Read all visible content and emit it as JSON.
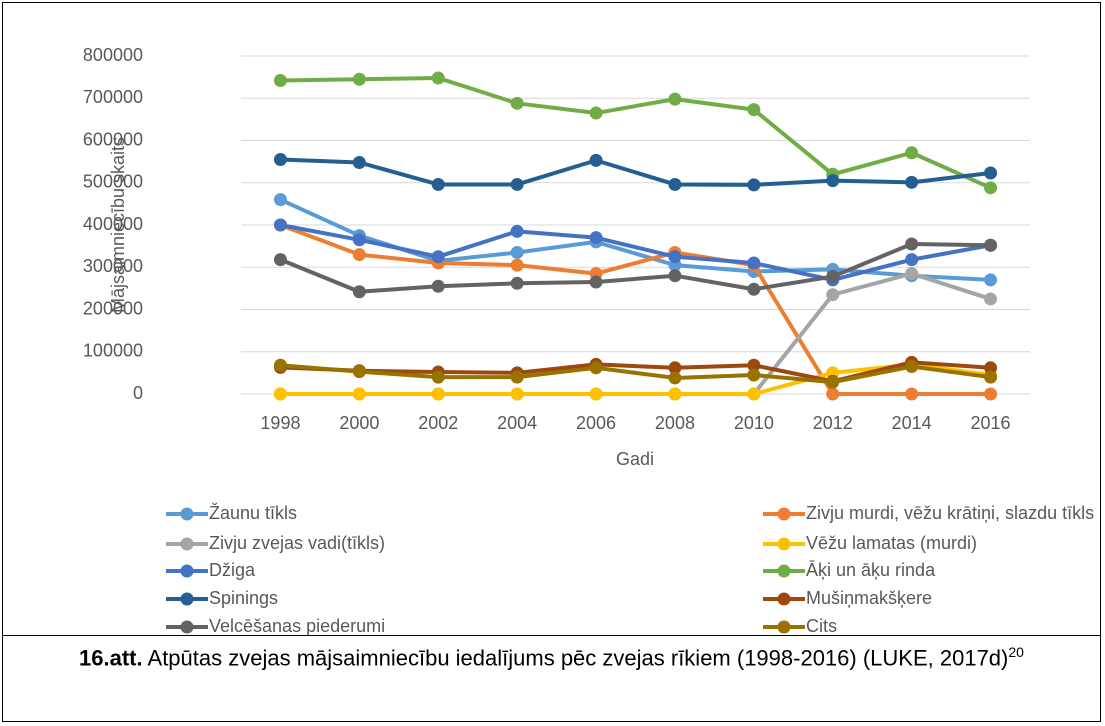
{
  "chart_data": {
    "type": "line",
    "x_label": "Gadi",
    "y_label": "Mājsaimniecību skaits",
    "categories": [
      "1998",
      "2000",
      "2002",
      "2004",
      "2006",
      "2008",
      "2010",
      "2012",
      "2014",
      "2016"
    ],
    "ylim": [
      0,
      800000
    ],
    "yticks": [
      0,
      100000,
      200000,
      300000,
      400000,
      500000,
      600000,
      700000,
      800000
    ],
    "grid": true,
    "series": [
      {
        "name": "Žaunu tīkls",
        "color": "#5B9BD5",
        "values": [
          460000,
          375000,
          315000,
          335000,
          360000,
          305000,
          290000,
          295000,
          280000,
          270000
        ]
      },
      {
        "name": "Zivju murdi, vēžu krātiņi, slazdu tīkls",
        "color": "#ED7D31",
        "values": [
          400000,
          330000,
          310000,
          305000,
          285000,
          335000,
          305000,
          0,
          0,
          0
        ]
      },
      {
        "name": "Zivju zvejas vadi(tīkls)",
        "color": "#A5A5A5",
        "values": [
          0,
          0,
          0,
          0,
          0,
          0,
          0,
          235000,
          285000,
          225000
        ]
      },
      {
        "name": "Vēžu lamatas (murdi)",
        "color": "#FFC000",
        "values": [
          0,
          0,
          0,
          0,
          0,
          0,
          0,
          50000,
          70000,
          45000
        ]
      },
      {
        "name": "Džiga",
        "color": "#4472C4",
        "values": [
          400000,
          365000,
          325000,
          385000,
          370000,
          325000,
          310000,
          270000,
          318000,
          352000
        ]
      },
      {
        "name": "Āķi un āķu rinda",
        "color": "#70AD47",
        "values": [
          742000,
          745000,
          748000,
          688000,
          665000,
          698000,
          673000,
          520000,
          571000,
          488000
        ]
      },
      {
        "name": "Spinings",
        "color": "#255E91",
        "values": [
          555000,
          548000,
          496000,
          496000,
          553000,
          496000,
          495000,
          505000,
          501000,
          523000
        ]
      },
      {
        "name": "Mušiņmakšķere",
        "color": "#9E480E",
        "values": [
          63000,
          55000,
          52000,
          50000,
          70000,
          62000,
          68000,
          30000,
          75000,
          62000
        ]
      },
      {
        "name": "Velcēšanas piederumi",
        "color": "#636363",
        "values": [
          318000,
          242000,
          255000,
          262000,
          265000,
          280000,
          248000,
          278000,
          355000,
          352000
        ]
      },
      {
        "name": "Cits",
        "color": "#997300",
        "values": [
          68000,
          53000,
          40000,
          40000,
          62000,
          38000,
          45000,
          28000,
          65000,
          40000
        ]
      }
    ]
  },
  "caption": {
    "label": "16.att.",
    "text": " Atpūtas zvejas mājsaimniecību iedalījums pēc zvejas rīkiem (1998-2016) (LUKE, 2017d)",
    "sup": "20"
  }
}
